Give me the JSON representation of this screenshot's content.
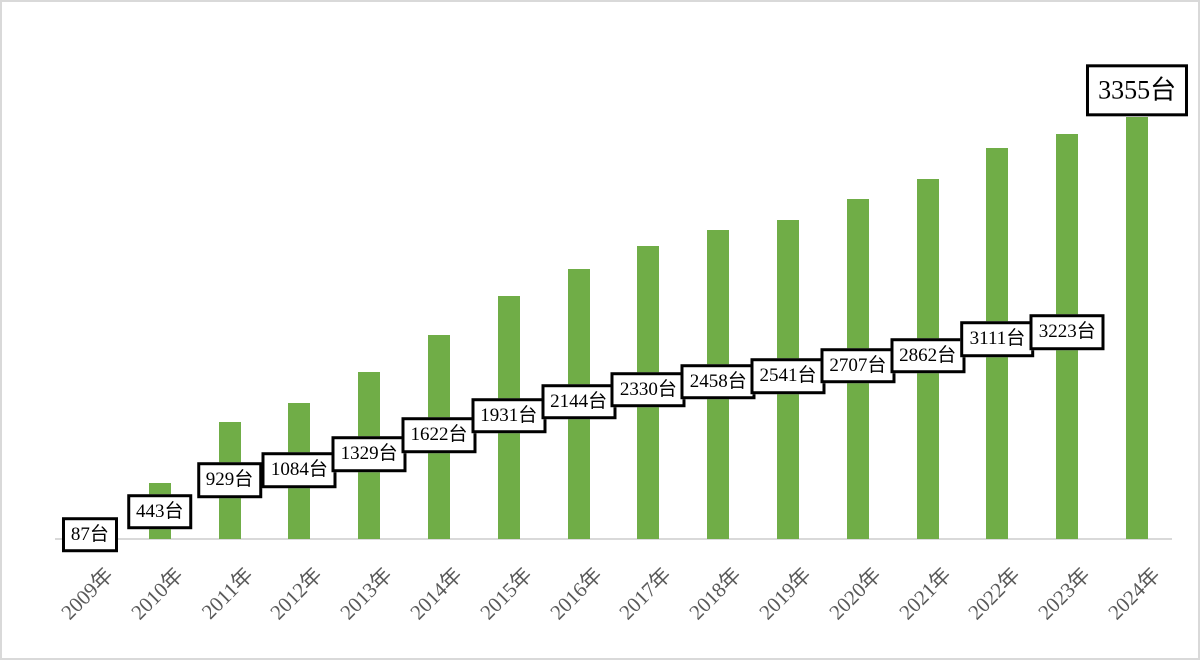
{
  "chart_data": {
    "type": "bar",
    "title": "",
    "xlabel": "",
    "ylabel": "",
    "categories": [
      "2009年",
      "2010年",
      "2011年",
      "2012年",
      "2013年",
      "2014年",
      "2015年",
      "2016年",
      "2017年",
      "2018年",
      "2019年",
      "2020年",
      "2021年",
      "2022年",
      "2023年",
      "2024年"
    ],
    "values": [
      87,
      443,
      929,
      1084,
      1329,
      1622,
      1931,
      2144,
      2330,
      2458,
      2541,
      2707,
      2862,
      3111,
      3223,
      3355
    ],
    "data_labels": [
      "87台",
      "443台",
      "929台",
      "1084台",
      "1329台",
      "1622台",
      "1931台",
      "2144台",
      "2330台",
      "2458台",
      "2541台",
      "2707台",
      "2862台",
      "3111台",
      "3223台",
      "3355台"
    ],
    "unit_suffix": "台",
    "ylim": [
      0,
      3400
    ],
    "gridlines": false,
    "legend": "none",
    "y_axis_visible": false,
    "highlight_last_label": true,
    "bar_color": "#70AD47",
    "label_box_background": "#FFFFFF",
    "label_box_border_color": "#000000",
    "label_text_color": "#000000",
    "axis_line_color": "#D9D9D9",
    "tick_label_color": "#595959",
    "chart_border_color": "#D9D9D9",
    "background": "#FFFFFF"
  }
}
